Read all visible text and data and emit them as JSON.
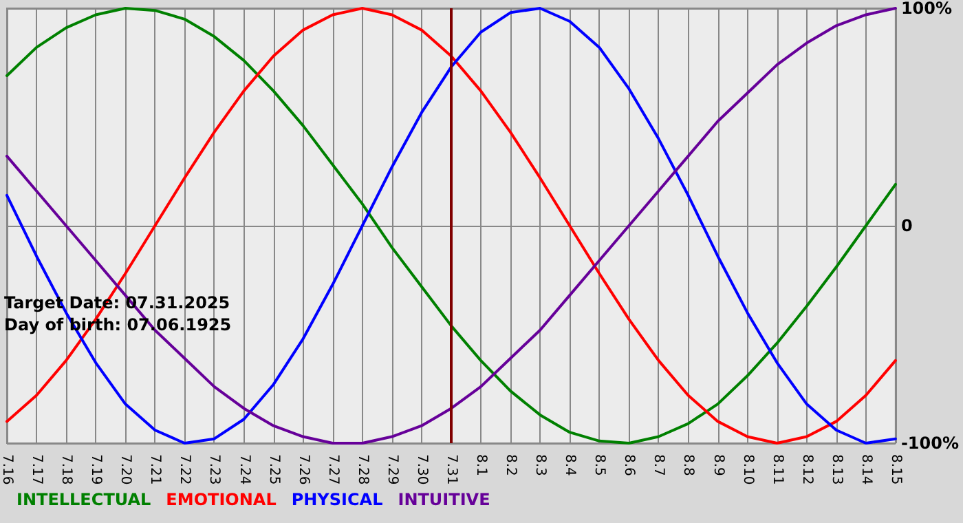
{
  "chart_data": {
    "type": "line",
    "categories": [
      "7.16",
      "7.17",
      "7.18",
      "7.19",
      "7.20",
      "7.21",
      "7.22",
      "7.23",
      "7.24",
      "7.25",
      "7.26",
      "7.27",
      "7.28",
      "7.29",
      "7.30",
      "7.31",
      "8.1",
      "8.2",
      "8.3",
      "8.4",
      "8.5",
      "8.6",
      "8.7",
      "8.8",
      "8.9",
      "8.10",
      "8.11",
      "8.12",
      "8.13",
      "8.14",
      "8.15"
    ],
    "series": [
      {
        "name": "INTELLECTUAL",
        "color": "#008000",
        "values": [
          69,
          82,
          91,
          97,
          100,
          99,
          95,
          87,
          76,
          62,
          46,
          28,
          10,
          -10,
          -28,
          -46,
          -62,
          -76,
          -87,
          -95,
          -99,
          -100,
          -97,
          -91,
          -82,
          -69,
          -54,
          -37,
          -19,
          0,
          19
        ]
      },
      {
        "name": "EMOTIONAL",
        "color": "#ff0000",
        "values": [
          -90,
          -78,
          -62,
          -43,
          -22,
          0,
          22,
          43,
          62,
          78,
          90,
          97,
          100,
          97,
          90,
          78,
          62,
          43,
          22,
          0,
          -22,
          -43,
          -62,
          -78,
          -90,
          -97,
          -100,
          -97,
          -90,
          -78,
          -62
        ]
      },
      {
        "name": "PHYSICAL",
        "color": "#0000ff",
        "values": [
          14,
          -14,
          -40,
          -63,
          -82,
          -94,
          -100,
          -98,
          -89,
          -73,
          -52,
          -27,
          0,
          27,
          52,
          73,
          89,
          98,
          100,
          94,
          82,
          63,
          40,
          14,
          -14,
          -40,
          -63,
          -82,
          -94,
          -100,
          -98
        ]
      },
      {
        "name": "INTUITIVE",
        "color": "#660099",
        "values": [
          32,
          16,
          0,
          -16,
          -32,
          -48,
          -61,
          -74,
          -84,
          -92,
          -97,
          -100,
          -100,
          -97,
          -92,
          -84,
          -74,
          -61,
          -48,
          -32,
          -16,
          0,
          16,
          32,
          48,
          61,
          74,
          84,
          92,
          97,
          100
        ]
      }
    ],
    "ylim": [
      -100,
      100
    ],
    "yticks": [
      {
        "value": -100,
        "label": "-100%"
      },
      0,
      {
        "value": 100,
        "label": "100%"
      }
    ],
    "grid": true,
    "legend": "bottom left",
    "marker": "none",
    "ref_lines": [
      {
        "axis": "x",
        "value": "7.31",
        "color": "#800000"
      }
    ],
    "annotations": [
      "Target Date: 07.31.2025",
      "Day of birth: 07.06.1925"
    ]
  }
}
